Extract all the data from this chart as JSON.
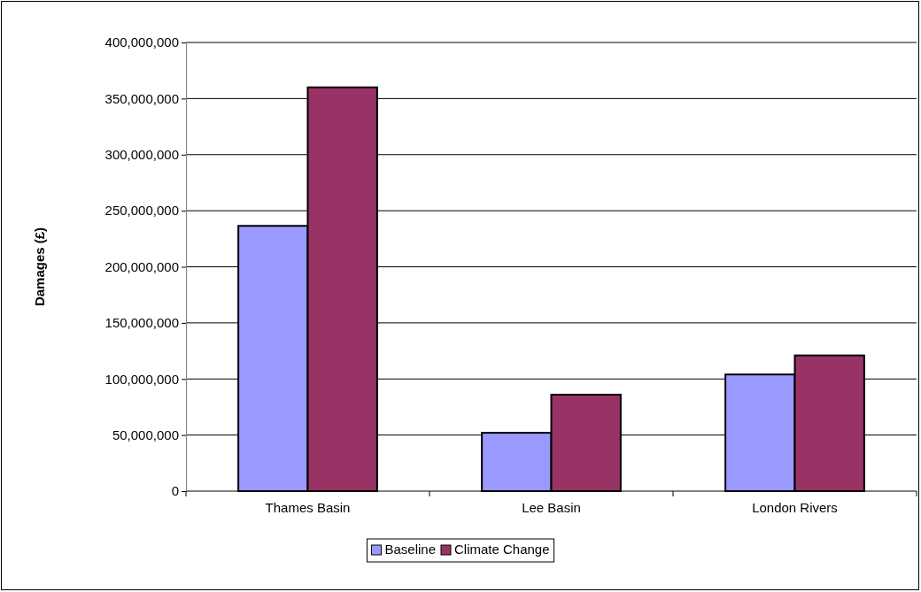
{
  "chart_data": {
    "type": "bar",
    "ylabel": "Damages (£)",
    "categories": [
      "Thames Basin",
      "Lee Basin",
      "London Rivers"
    ],
    "series": [
      {
        "name": "Baseline",
        "color": "#9999ff",
        "values": [
          236500000,
          52000000,
          104000000
        ]
      },
      {
        "name": "Climate Change",
        "color": "#993366",
        "values": [
          360000000,
          86000000,
          121000000
        ]
      }
    ],
    "ylim": [
      0,
      400000000
    ],
    "yticks": [
      {
        "value": 0,
        "label": "0"
      },
      {
        "value": 50000000,
        "label": "50,000,000"
      },
      {
        "value": 100000000,
        "label": "100,000,000"
      },
      {
        "value": 150000000,
        "label": "150,000,000"
      },
      {
        "value": 200000000,
        "label": "200,000,000"
      },
      {
        "value": 250000000,
        "label": "250,000,000"
      },
      {
        "value": 300000000,
        "label": "300,000,000"
      },
      {
        "value": 350000000,
        "label": "350,000,000"
      },
      {
        "value": 400000000,
        "label": "400,000,000"
      }
    ],
    "grid": "y",
    "legend": "bottom"
  }
}
